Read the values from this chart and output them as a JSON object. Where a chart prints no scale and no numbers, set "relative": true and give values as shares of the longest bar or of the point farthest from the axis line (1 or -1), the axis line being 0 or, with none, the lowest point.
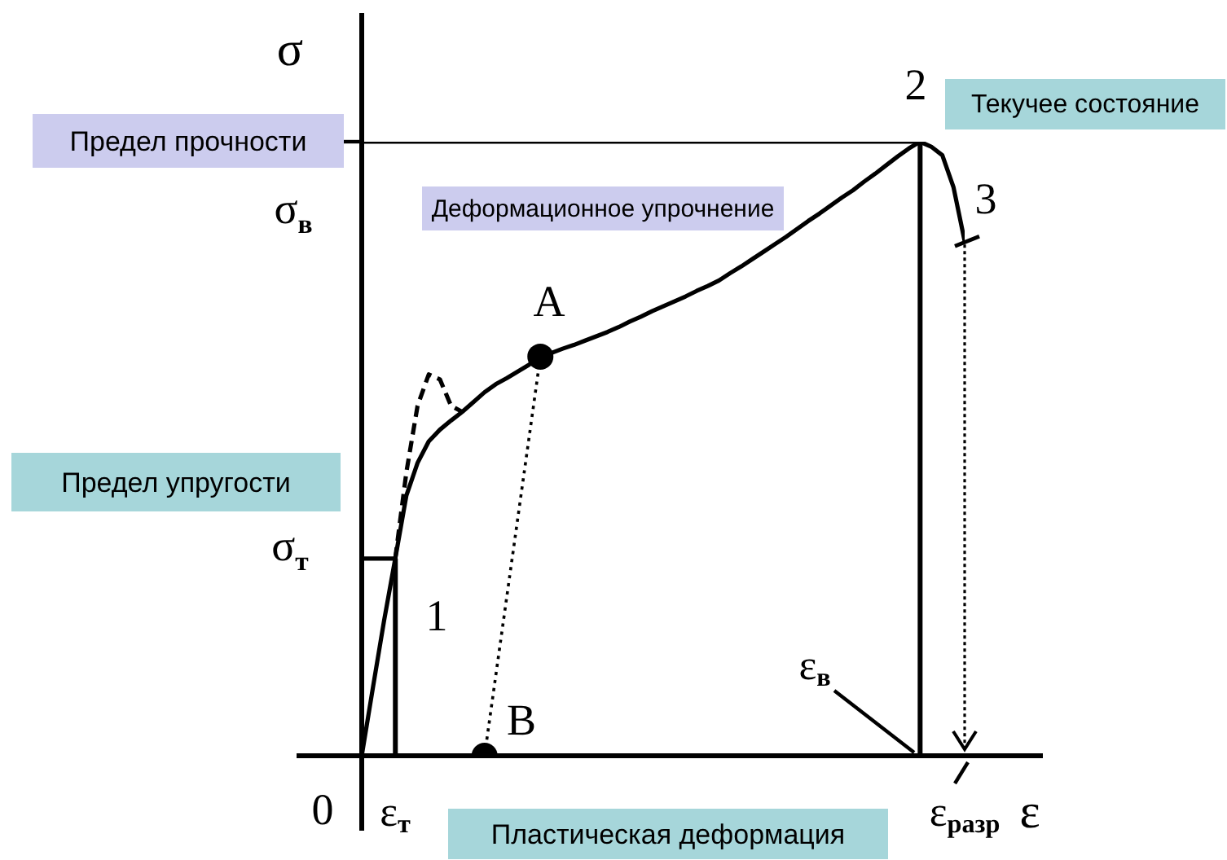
{
  "chart_data": {
    "type": "line",
    "relative": true,
    "xlabel": "ε",
    "ylabel": "σ",
    "categories": [
      null,
      null,
      null,
      "ε$_{т}$",
      null,
      null,
      null,
      null,
      null,
      null,
      null,
      null,
      null,
      null,
      null,
      null,
      null,
      null,
      null,
      null,
      null,
      null,
      null,
      null,
      null,
      null,
      null,
      null,
      null,
      null,
      null,
      null,
      null,
      null,
      null,
      null,
      null,
      null,
      null,
      null,
      null,
      null,
      null,
      null,
      null,
      null,
      null,
      null,
      null,
      null,
      null,
      null,
      null,
      null,
      "ε$_{разр}$"
    ],
    "series": [
      {
        "color": "#000000",
        "values": [
          0,
          0.111,
          0.22,
          0.321,
          0.424,
          0.477,
          0.512,
          0.531,
          0.546,
          0.56,
          0.576,
          0.592,
          0.605,
          0.615,
          0.626,
          0.637,
          0.65,
          0.656,
          0.663,
          0.669,
          0.676,
          0.683,
          0.69,
          0.698,
          0.707,
          0.715,
          0.724,
          0.732,
          0.74,
          0.748,
          0.757,
          0.765,
          0.774,
          0.786,
          0.797,
          0.809,
          0.821,
          0.833,
          0.845,
          0.858,
          0.871,
          0.883,
          0.896,
          0.909,
          0.921,
          0.935,
          0.948,
          0.962,
          0.976,
          0.989,
          1,
          0.992,
          0.978,
          0.926,
          0.838
        ]
      },
      {
        "color": "#000000",
        "line_style": "dashed",
        "values": [
          null,
          null,
          null,
          0.321,
          0.462,
          0.57,
          0.621,
          0.613,
          0.57,
          0.56,
          null,
          null,
          null,
          null,
          null,
          null,
          null,
          null,
          null,
          null,
          null,
          null,
          null,
          null,
          null,
          null,
          null,
          null,
          null,
          null,
          null,
          null,
          null,
          null,
          null,
          null,
          null,
          null,
          null,
          null,
          null,
          null,
          null,
          null,
          null,
          null,
          null,
          null,
          null,
          null,
          null,
          null,
          null,
          null,
          null
        ]
      },
      {
        "color": "#000000",
        "line_style": "dotted",
        "values": [
          null,
          null,
          null,
          null,
          null,
          null,
          null,
          null,
          null,
          null,
          null,
          0,
          0.13,
          0.26,
          0.39,
          0.52,
          0.65,
          null,
          null,
          null,
          null,
          null,
          null,
          null,
          null,
          null,
          null,
          null,
          null,
          null,
          null,
          null,
          null,
          null,
          null,
          null,
          null,
          null,
          null,
          null,
          null,
          null,
          null,
          null,
          null,
          null,
          null,
          null,
          null,
          null,
          null,
          null,
          null,
          null,
          null
        ]
      },
      {
        "color": "#000000",
        "values": [
          1,
          1,
          1,
          1,
          1,
          1,
          1,
          1,
          1,
          1,
          1,
          1,
          1,
          1,
          1,
          1,
          1,
          1,
          1,
          1,
          1,
          1,
          1,
          1,
          1,
          1,
          1,
          1,
          1,
          1,
          1,
          1,
          1,
          1,
          1,
          1,
          1,
          1,
          1,
          1,
          1,
          1,
          1,
          1,
          1,
          1,
          1,
          1,
          1,
          1,
          1,
          null,
          null,
          null,
          null
        ]
      },
      {
        "type": "bar",
        "color": "#000000",
        "values": [
          null,
          null,
          null,
          0.321,
          null,
          null,
          null,
          null,
          null,
          null,
          null,
          null,
          null,
          null,
          null,
          null,
          null,
          null,
          null,
          null,
          null,
          null,
          null,
          null,
          null,
          null,
          null,
          null,
          null,
          null,
          null,
          null,
          null,
          null,
          null,
          null,
          null,
          null,
          null,
          null,
          null,
          null,
          null,
          null,
          null,
          null,
          null,
          null,
          null,
          null,
          1,
          null,
          null,
          null,
          null
        ]
      },
      {
        "color": "#000000",
        "values": [
          0.321,
          0.321,
          0.321,
          0.321,
          null,
          null,
          null,
          null,
          null,
          null,
          null,
          null,
          null,
          null,
          null,
          null,
          null,
          null,
          null,
          null,
          null,
          null,
          null,
          null,
          null,
          null,
          null,
          null,
          null,
          null,
          null,
          null,
          null,
          null,
          null,
          null,
          null,
          null,
          null,
          null,
          null,
          null,
          null,
          null,
          null,
          null,
          null,
          null,
          null,
          null,
          null,
          null,
          null,
          null,
          null
        ]
      },
      {
        "type": "scatter",
        "color": "#000000",
        "marker": "circle",
        "values": [
          null,
          null,
          null,
          null,
          null,
          null,
          null,
          null,
          null,
          null,
          null,
          0,
          null,
          null,
          null,
          null,
          0.65,
          null,
          null,
          null,
          null,
          null,
          null,
          null,
          null,
          null,
          null,
          null,
          null,
          null,
          null,
          null,
          null,
          null,
          null,
          null,
          null,
          null,
          null,
          null,
          null,
          null,
          null,
          null,
          null,
          null,
          null,
          null,
          null,
          null,
          null,
          null,
          null,
          null,
          null
        ]
      }
    ],
    "annotations": [
      "Предел прочности",
      "σ$_{в}$",
      "Предел упругости",
      "σ$_{т}$",
      "1",
      "A",
      "B",
      "0",
      "2",
      "Текучее состояние",
      "3",
      "Деформационное упрочнение",
      "ε$_{в}$",
      "Пластическая деформация"
    ]
  }
}
